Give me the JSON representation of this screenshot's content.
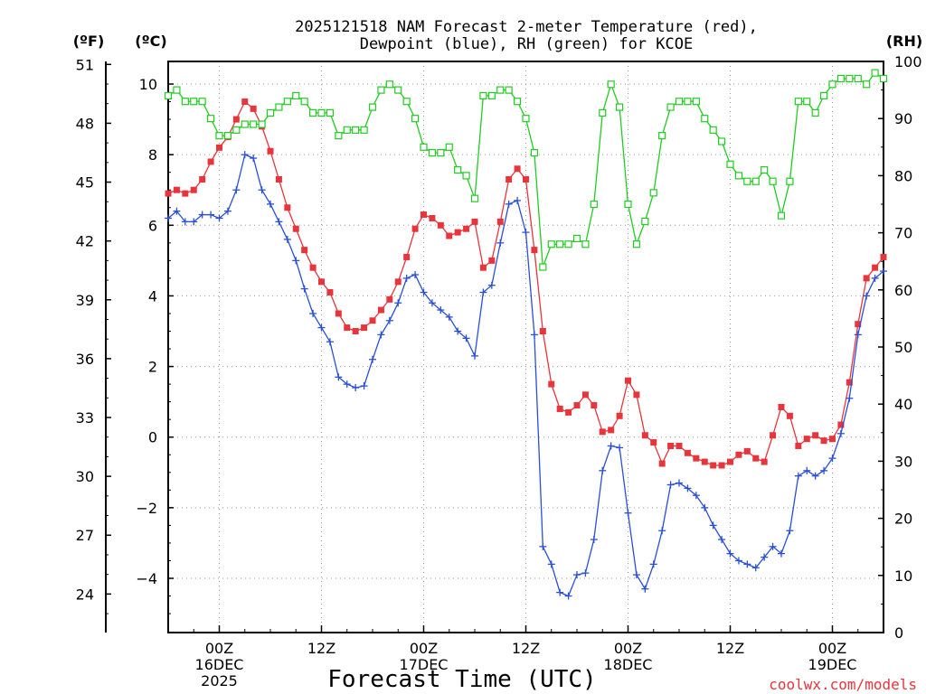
{
  "chart_data": {
    "type": "line",
    "title_line1": "2025121518 NAM Forecast 2-meter Temperature (red),",
    "title_line2": "Dewpoint (blue), RH (green) for KCOE",
    "xlabel": "Forecast Time (UTC)",
    "watermark": "coolwx.com/models",
    "unit_f": "(ºF)",
    "unit_c": "(ºC)",
    "unit_rh": "(RH)",
    "left_axis_c": {
      "ylim": [
        -5.5,
        10.6
      ],
      "ticks": [
        "10",
        "8",
        "6",
        "4",
        "2",
        "0",
        "−2",
        "−4"
      ],
      "values": [
        10,
        8,
        6,
        4,
        2,
        0,
        -2,
        -4
      ]
    },
    "left_axis_f": {
      "ticks": [
        "51",
        "48",
        "45",
        "42",
        "39",
        "36",
        "33",
        "30",
        "27",
        "24"
      ],
      "values": [
        51,
        48,
        45,
        42,
        39,
        36,
        33,
        30,
        27,
        24
      ]
    },
    "right_axis_rh": {
      "ylim": [
        0,
        100
      ],
      "ticks": [
        "100",
        "90",
        "80",
        "70",
        "60",
        "50",
        "40",
        "30",
        "20",
        "10",
        "0"
      ],
      "values": [
        100,
        90,
        80,
        70,
        60,
        50,
        40,
        30,
        20,
        10,
        0
      ]
    },
    "x_axis": {
      "xlim": [
        -6,
        78
      ],
      "ticks": [
        {
          "h": 0,
          "line1": "00Z",
          "line2": "16DEC",
          "line3": "2025"
        },
        {
          "h": 12,
          "line1": "12Z",
          "line2": "",
          "line3": ""
        },
        {
          "h": 24,
          "line1": "00Z",
          "line2": "17DEC",
          "line3": ""
        },
        {
          "h": 36,
          "line1": "12Z",
          "line2": "",
          "line3": ""
        },
        {
          "h": 48,
          "line1": "00Z",
          "line2": "18DEC",
          "line3": ""
        },
        {
          "h": 60,
          "line1": "12Z",
          "line2": "",
          "line3": ""
        },
        {
          "h": 72,
          "line1": "00Z",
          "line2": "19DEC",
          "line3": ""
        }
      ]
    },
    "start_hour": -6,
    "step_hours": 1,
    "series": [
      {
        "name": "Temperature",
        "color": "#e8343b",
        "unit": "C",
        "values": [
          6.9,
          7.0,
          6.9,
          7.0,
          7.3,
          7.8,
          8.2,
          8.5,
          9.0,
          9.5,
          9.3,
          8.8,
          8.1,
          7.3,
          6.5,
          5.9,
          5.3,
          4.8,
          4.4,
          4.1,
          3.5,
          3.1,
          3.0,
          3.1,
          3.3,
          3.6,
          3.9,
          4.4,
          5.1,
          5.9,
          6.3,
          6.2,
          6.0,
          5.7,
          5.8,
          5.9,
          6.1,
          4.8,
          5.0,
          6.1,
          7.3,
          7.6,
          7.3,
          5.3,
          3.0,
          1.5,
          0.8,
          0.7,
          0.9,
          1.2,
          0.9,
          0.15,
          0.2,
          0.6,
          1.6,
          1.2,
          0.05,
          -0.15,
          -0.75,
          -0.25,
          -0.25,
          -0.45,
          -0.6,
          -0.7,
          -0.8,
          -0.8,
          -0.7,
          -0.5,
          -0.4,
          -0.6,
          -0.7,
          0.05,
          0.85,
          0.6,
          -0.25,
          -0.05,
          0.05,
          -0.1,
          -0.05,
          0.35,
          1.55,
          3.2,
          4.5,
          4.8,
          5.1
        ]
      },
      {
        "name": "Dewpoint",
        "color": "#2a4fd8",
        "unit": "C",
        "values": [
          6.2,
          6.4,
          6.1,
          6.1,
          6.3,
          6.3,
          6.2,
          6.4,
          7.0,
          8.0,
          7.9,
          7.0,
          6.6,
          6.1,
          5.6,
          5.0,
          4.2,
          3.5,
          3.1,
          2.7,
          1.7,
          1.5,
          1.4,
          1.45,
          2.2,
          2.9,
          3.3,
          3.8,
          4.5,
          4.6,
          4.1,
          3.8,
          3.6,
          3.4,
          3.0,
          2.8,
          2.3,
          4.1,
          4.3,
          5.5,
          6.6,
          6.7,
          5.8,
          2.9,
          -3.1,
          -3.6,
          -4.4,
          -4.5,
          -3.9,
          -3.85,
          -2.9,
          -0.95,
          -0.25,
          -0.3,
          -2.15,
          -3.9,
          -4.3,
          -3.6,
          -2.65,
          -1.35,
          -1.3,
          -1.45,
          -1.65,
          -2.0,
          -2.5,
          -2.9,
          -3.3,
          -3.5,
          -3.6,
          -3.7,
          -3.4,
          -3.1,
          -3.3,
          -2.65,
          -1.1,
          -0.95,
          -1.1,
          -0.95,
          -0.6,
          0.1,
          1.1,
          2.9,
          4.0,
          4.5,
          4.7
        ]
      },
      {
        "name": "RH",
        "color": "#22cc22",
        "unit": "%",
        "values": [
          94,
          95,
          93,
          93,
          93,
          90,
          87,
          87,
          88,
          89,
          89,
          89,
          91,
          92,
          93,
          94,
          93,
          91,
          91,
          91,
          87,
          88,
          88,
          88,
          92,
          95,
          96,
          95,
          93,
          90,
          85,
          84,
          84,
          85,
          81,
          80,
          76,
          94,
          94,
          95,
          95,
          93,
          90,
          84,
          64,
          68,
          68,
          68,
          69,
          68,
          75,
          91,
          96,
          92,
          75,
          68,
          72,
          77,
          87,
          92,
          93,
          93,
          93,
          90,
          88,
          86,
          82,
          80,
          79,
          79,
          81,
          79,
          73,
          79,
          93,
          93,
          91,
          94,
          96,
          97,
          97,
          97,
          96,
          98,
          97
        ]
      }
    ]
  }
}
